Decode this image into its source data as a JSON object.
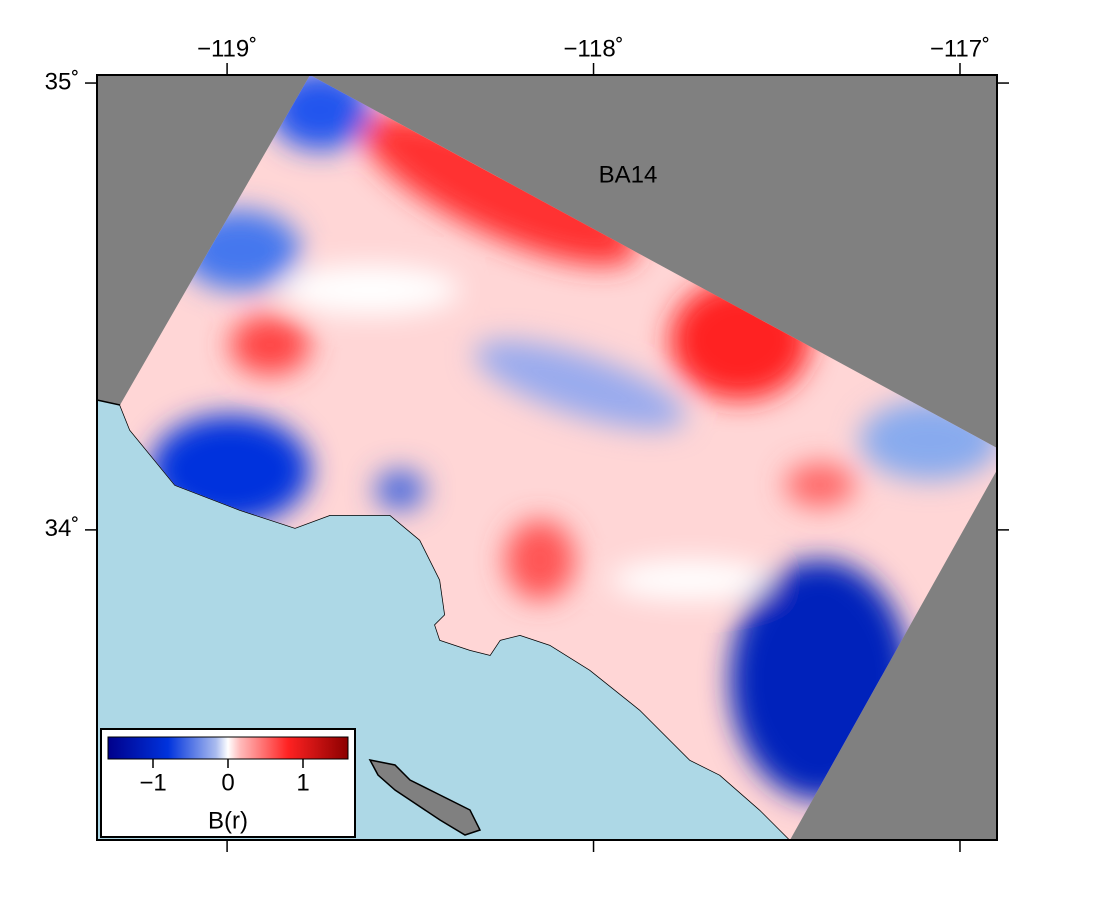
{
  "map": {
    "title": "BA14",
    "xlim": [
      -119.355,
      -116.899
    ],
    "ylim": [
      33.306,
      35.018
    ],
    "xticks": [
      {
        "value": -119,
        "label": "−119˚"
      },
      {
        "value": -118,
        "label": "−118˚"
      },
      {
        "value": -117,
        "label": "−117˚"
      }
    ],
    "yticks": [
      {
        "value": 35,
        "label": "35˚"
      },
      {
        "value": 34,
        "label": "34˚"
      }
    ],
    "colorbar": {
      "label": "B(r)",
      "range": [
        -1.6,
        1.6
      ],
      "ticks": [
        {
          "value": -1,
          "label": "−1"
        },
        0,
        1
      ]
    }
  }
}
